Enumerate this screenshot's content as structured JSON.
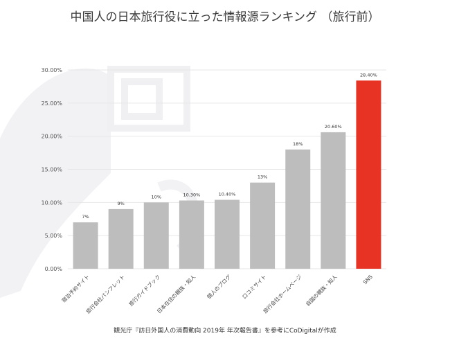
{
  "title": "中国人の日本旅行役に立った情報源ランキング （旅行前）",
  "source": "観光庁『訪日外国人の消費動向 2019年 年次報告書』を参考にCoDigitalが作成",
  "colors": {
    "bar_default": "#bdbdbd",
    "bar_highlight": "#e63324",
    "grid": "#e6e6e6",
    "watermark": "#f2f2f5"
  },
  "chart_data": {
    "type": "bar",
    "title": "中国人の日本旅行役に立った情報源ランキング （旅行前）",
    "categories": [
      "宿泊予約サイト",
      "旅行会社パンフレット",
      "旅行ガイドブック",
      "日本在住の親族・知人",
      "個人のブログ",
      "口コミサイト",
      "旅行会社ホームページ",
      "自国の親族・知人",
      "SNS"
    ],
    "values": [
      7,
      9,
      10,
      10.3,
      10.4,
      13,
      18,
      20.6,
      28.4
    ],
    "data_labels": [
      "7%",
      "9%",
      "10%",
      "10.30%",
      "10.40%",
      "13%",
      "18%",
      "20.60%",
      "28.40%"
    ],
    "highlight_index": 8,
    "yticks": [
      "0.00%",
      "5.00%",
      "10.00%",
      "15.00%",
      "20.00%",
      "25.00%",
      "30.00%"
    ],
    "ylim": [
      0,
      30
    ],
    "grid": true,
    "legend": "none"
  }
}
